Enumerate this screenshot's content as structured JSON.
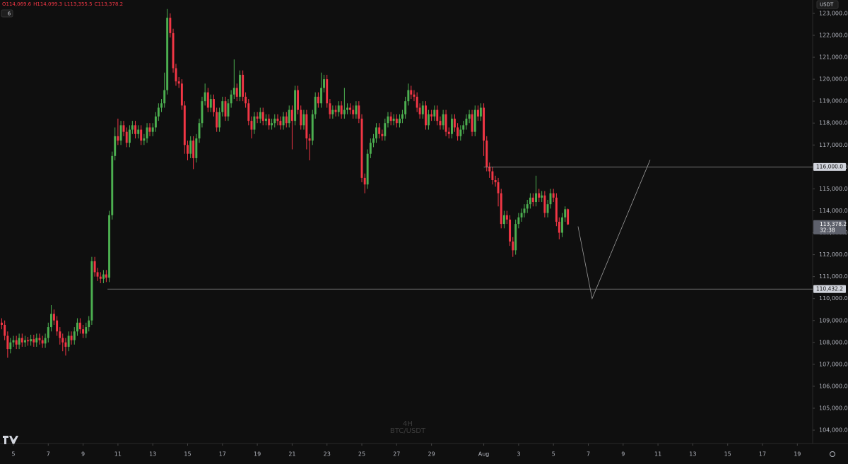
{
  "chart_data": {
    "type": "candlestick",
    "header_labels": [
      "O114,069.6",
      "H114,099.3",
      "L113,355.5",
      "C113,378.2"
    ],
    "interval_badge": "6",
    "currency": "USDT",
    "watermark": [
      "4H",
      "BTC/USDT"
    ],
    "up_color": "#4caf50",
    "down_color": "#f23645",
    "xlim": [
      4.23,
      50.88
    ],
    "ylim": [
      103390,
      123610
    ],
    "xticks": [
      5,
      7,
      9,
      11,
      13,
      15,
      17,
      19,
      21,
      23,
      25,
      27,
      29,
      {
        "value": 32,
        "label": "Aug"
      },
      {
        "value": 34,
        "label": "3"
      },
      {
        "value": 36,
        "label": "5"
      },
      {
        "value": 38,
        "label": "7"
      },
      {
        "value": 40,
        "label": "9"
      },
      {
        "value": 42,
        "label": "11"
      },
      {
        "value": 44,
        "label": "13"
      },
      {
        "value": 46,
        "label": "15"
      },
      {
        "value": 48,
        "label": "17"
      },
      {
        "value": 50,
        "label": "19"
      }
    ],
    "yticks": [
      {
        "value": 104000,
        "label": "104,000.0"
      },
      {
        "value": 105000,
        "label": "105,000.0"
      },
      {
        "value": 106000,
        "label": "106,000.0"
      },
      {
        "value": 107000,
        "label": "107,000.0"
      },
      {
        "value": 108000,
        "label": "108,000.0"
      },
      {
        "value": 109000,
        "label": "109,000.0"
      },
      {
        "value": 110000,
        "label": "110,000.0"
      },
      {
        "value": 111000,
        "label": "111,000.0"
      },
      {
        "value": 112000,
        "label": "112,000.0"
      },
      {
        "value": 113000,
        "label": "113,000.0"
      },
      {
        "value": 114000,
        "label": "114,000.0"
      },
      {
        "value": 115000,
        "label": "115,000.0"
      },
      {
        "value": 116000,
        "label": "116,000.0"
      },
      {
        "value": 117000,
        "label": "117,000.0"
      },
      {
        "value": 118000,
        "label": "118,000.0"
      },
      {
        "value": 119000,
        "label": "119,000.0"
      },
      {
        "value": 120000,
        "label": "120,000.0"
      },
      {
        "value": 121000,
        "label": "121,000.0"
      },
      {
        "value": 122000,
        "label": "122,000.0"
      },
      {
        "value": 123000,
        "label": "123,000.0"
      }
    ],
    "x": [
      4.33,
      4.5,
      4.67,
      4.83,
      5,
      5.17,
      5.33,
      5.5,
      5.67,
      5.83,
      6,
      6.17,
      6.33,
      6.5,
      6.67,
      6.83,
      7,
      7.17,
      7.33,
      7.5,
      7.67,
      7.83,
      8,
      8.17,
      8.33,
      8.5,
      8.67,
      8.83,
      9,
      9.17,
      9.33,
      9.5,
      9.67,
      9.83,
      10,
      10.17,
      10.33,
      10.5,
      10.67,
      10.83,
      11,
      11.17,
      11.33,
      11.5,
      11.67,
      11.83,
      12,
      12.17,
      12.33,
      12.5,
      12.67,
      12.83,
      13,
      13.17,
      13.33,
      13.5,
      13.67,
      13.83,
      14,
      14.17,
      14.33,
      14.5,
      14.67,
      14.83,
      15,
      15.17,
      15.33,
      15.5,
      15.67,
      15.83,
      16,
      16.17,
      16.33,
      16.5,
      16.67,
      16.83,
      17,
      17.17,
      17.33,
      17.5,
      17.67,
      17.83,
      18,
      18.17,
      18.33,
      18.5,
      18.67,
      18.83,
      19,
      19.17,
      19.33,
      19.5,
      19.67,
      19.83,
      20,
      20.17,
      20.33,
      20.5,
      20.67,
      20.83,
      21,
      21.17,
      21.33,
      21.5,
      21.67,
      21.83,
      22,
      22.17,
      22.33,
      22.5,
      22.67,
      22.83,
      23,
      23.17,
      23.33,
      23.5,
      23.67,
      23.83,
      24,
      24.17,
      24.33,
      24.5,
      24.67,
      24.83,
      25,
      25.17,
      25.33,
      25.5,
      25.67,
      25.83,
      26,
      26.17,
      26.33,
      26.5,
      26.67,
      26.83,
      27,
      27.17,
      27.33,
      27.5,
      27.67,
      27.83,
      28,
      28.17,
      28.33,
      28.5,
      28.67,
      28.83,
      29,
      29.17,
      29.33,
      29.5,
      29.67,
      29.83,
      30,
      30.17,
      30.33,
      30.5,
      30.67,
      30.83,
      31,
      31.17,
      31.33,
      31.5,
      31.67,
      31.83,
      32,
      32.17,
      32.33,
      32.5,
      32.67,
      32.83,
      33,
      33.17,
      33.33,
      33.5,
      33.67,
      33.83,
      34,
      34.17,
      34.33,
      34.5,
      34.67,
      34.83,
      35,
      35.17,
      35.33,
      35.5,
      35.67,
      35.83,
      36,
      36.17,
      36.33,
      36.5,
      36.67,
      36.83
    ],
    "open": [
      108900,
      108800,
      108300,
      107700,
      108000,
      108100,
      107900,
      108200,
      108000,
      108100,
      108050,
      108150,
      108000,
      108200,
      108100,
      107950,
      108200,
      108700,
      109300,
      109000,
      108500,
      108200,
      108000,
      107800,
      108300,
      108100,
      108500,
      108900,
      108600,
      108400,
      108700,
      109000,
      111700,
      111200,
      111000,
      110900,
      111100,
      110950,
      113800,
      116500,
      117400,
      117200,
      117900,
      117600,
      117100,
      117700,
      117900,
      117500,
      117700,
      117200,
      117300,
      117800,
      117600,
      117800,
      118300,
      118700,
      118900,
      119500,
      122800,
      122100,
      120500,
      119900,
      119800,
      118800,
      117000,
      116600,
      117200,
      116400,
      117300,
      118000,
      119000,
      119400,
      118700,
      119100,
      118500,
      117800,
      118500,
      119000,
      118300,
      118900,
      119300,
      119600,
      119200,
      120200,
      119200,
      118900,
      118100,
      117700,
      118300,
      118200,
      118500,
      118100,
      118200,
      117900,
      118000,
      118200,
      118100,
      117900,
      118300,
      118000,
      118600,
      118100,
      119500,
      118600,
      117900,
      118400,
      117300,
      117200,
      118400,
      119200,
      118900,
      119600,
      120000,
      118900,
      118400,
      118600,
      118500,
      118800,
      118400,
      118600,
      118700,
      118600,
      118400,
      118800,
      118200,
      115500,
      115200,
      116600,
      117100,
      117300,
      117800,
      117500,
      117400,
      118000,
      118300,
      118100,
      118200,
      118000,
      118200,
      118400,
      119000,
      119500,
      119300,
      119200,
      118700,
      118400,
      118800,
      117900,
      118400,
      118300,
      118600,
      118100,
      117900,
      118400,
      117600,
      117500,
      118200,
      117800,
      117400,
      117700,
      117900,
      118200,
      118400,
      117600,
      118600,
      118300,
      118700,
      117200,
      116000,
      115800,
      115400,
      115300,
      114800,
      113400,
      113800,
      113600,
      112600,
      112200,
      113400,
      113700,
      113900,
      114100,
      114300,
      114600,
      114400,
      114800,
      114600,
      114700,
      113900,
      114300,
      114800,
      114600,
      113500,
      113000,
      113700,
      114069.6
    ],
    "high": [
      109100,
      109000,
      108500,
      108200,
      108300,
      108300,
      108400,
      108400,
      108300,
      108250,
      108350,
      108350,
      108400,
      108400,
      108300,
      108400,
      108900,
      109700,
      109500,
      109200,
      108700,
      108400,
      108200,
      108500,
      108500,
      108700,
      109100,
      109100,
      108800,
      108900,
      109200,
      111900,
      111900,
      111400,
      111200,
      111300,
      111300,
      114000,
      116700,
      117800,
      118200,
      118100,
      118100,
      117800,
      117900,
      118100,
      118100,
      117900,
      117900,
      117500,
      118000,
      118000,
      118000,
      118500,
      118900,
      119100,
      120300,
      123200,
      123000,
      122300,
      120700,
      120100,
      120000,
      119000,
      117200,
      117400,
      117400,
      117500,
      118200,
      119200,
      119800,
      119600,
      119300,
      119300,
      118700,
      118700,
      119200,
      119200,
      119100,
      119500,
      120900,
      119800,
      120400,
      120400,
      119400,
      119100,
      118300,
      118500,
      118500,
      118700,
      118700,
      118400,
      118400,
      118200,
      118400,
      118400,
      118300,
      118500,
      118500,
      118800,
      118800,
      119700,
      119700,
      118800,
      118600,
      118600,
      117500,
      118600,
      119400,
      119400,
      120300,
      120200,
      120200,
      119100,
      118800,
      118800,
      119000,
      119000,
      119600,
      118900,
      118900,
      118800,
      119000,
      119000,
      118400,
      115700,
      116800,
      117300,
      117500,
      118000,
      118000,
      117700,
      118200,
      118500,
      118500,
      118400,
      118400,
      118400,
      118600,
      119200,
      119800,
      119700,
      119500,
      119400,
      118900,
      119000,
      119000,
      118600,
      118600,
      118800,
      118800,
      118300,
      118600,
      118600,
      117800,
      118400,
      118400,
      118000,
      117900,
      118100,
      118400,
      118600,
      118600,
      118800,
      118800,
      118900,
      118900,
      117400,
      116200,
      116000,
      115600,
      115500,
      115000,
      114000,
      114000,
      113800,
      112800,
      113600,
      113900,
      114100,
      114300,
      114500,
      114800,
      114800,
      115600,
      115000,
      114900,
      114900,
      114500,
      115000,
      115000,
      114800,
      113700,
      113900,
      114200,
      114099.3
    ],
    "low": [
      108600,
      108100,
      107300,
      107500,
      107800,
      107700,
      107700,
      107800,
      107800,
      107850,
      107850,
      107800,
      107800,
      107900,
      107750,
      107750,
      108000,
      108500,
      108800,
      108300,
      107900,
      107600,
      107400,
      107600,
      107900,
      107900,
      108300,
      108400,
      108200,
      108200,
      108500,
      108800,
      111000,
      110800,
      110700,
      110700,
      110750,
      110750,
      113600,
      116300,
      117000,
      117000,
      117400,
      116900,
      116900,
      117500,
      117300,
      117300,
      117000,
      117000,
      117100,
      117400,
      117400,
      117600,
      118100,
      118500,
      118700,
      119300,
      121900,
      120300,
      119700,
      119600,
      118600,
      116600,
      116300,
      116400,
      115900,
      116200,
      117100,
      117800,
      118800,
      118500,
      118500,
      118300,
      117600,
      117600,
      118300,
      118100,
      118100,
      118700,
      119100,
      119000,
      119000,
      119000,
      118700,
      117900,
      117300,
      117500,
      118000,
      118000,
      117900,
      117900,
      117700,
      117700,
      117800,
      117900,
      117700,
      117700,
      117800,
      117800,
      116800,
      117900,
      118400,
      117700,
      117700,
      116800,
      116300,
      117000,
      118200,
      118700,
      118700,
      119400,
      118700,
      118200,
      118200,
      118300,
      118300,
      118200,
      118200,
      118400,
      118400,
      118200,
      118200,
      118000,
      115300,
      114800,
      115000,
      116400,
      116900,
      117100,
      117300,
      117200,
      117200,
      117800,
      117900,
      117900,
      117800,
      117800,
      118000,
      118200,
      118800,
      119100,
      119000,
      118500,
      118200,
      118200,
      117700,
      117700,
      118100,
      118100,
      117900,
      117700,
      117700,
      117400,
      117300,
      117300,
      117600,
      117200,
      117200,
      117500,
      117700,
      118000,
      117400,
      117400,
      118100,
      118100,
      116500,
      115800,
      115500,
      115200,
      115100,
      114200,
      113200,
      113200,
      113400,
      112400,
      111900,
      112000,
      113200,
      113500,
      113700,
      113900,
      114100,
      114200,
      114200,
      114400,
      114400,
      113700,
      113700,
      114100,
      114400,
      113300,
      112700,
      112800,
      113500,
      113355.5
    ],
    "close": [
      108800,
      108300,
      107700,
      108000,
      108100,
      107900,
      108200,
      108000,
      108100,
      108050,
      108150,
      108000,
      108200,
      108100,
      107950,
      108200,
      108700,
      109300,
      109000,
      108500,
      108200,
      108000,
      107800,
      108300,
      108100,
      108500,
      108900,
      108600,
      108400,
      108700,
      109000,
      111700,
      111200,
      111000,
      110900,
      111100,
      110950,
      113800,
      116500,
      117400,
      117200,
      117900,
      117600,
      117100,
      117700,
      117900,
      117500,
      117700,
      117200,
      117300,
      117800,
      117600,
      117800,
      118300,
      118700,
      118900,
      119500,
      122800,
      122100,
      120500,
      119900,
      119800,
      118800,
      117000,
      116600,
      117200,
      116400,
      117300,
      118000,
      119000,
      119400,
      118700,
      119100,
      118500,
      117800,
      118500,
      119000,
      118300,
      118900,
      119300,
      119600,
      119200,
      120200,
      119200,
      118900,
      118100,
      117700,
      118300,
      118200,
      118500,
      118100,
      118200,
      117900,
      118000,
      118200,
      118100,
      117900,
      118300,
      118000,
      118600,
      118100,
      119500,
      118600,
      117900,
      118400,
      117300,
      117200,
      118400,
      119200,
      118900,
      119600,
      120000,
      118900,
      118400,
      118600,
      118500,
      118800,
      118400,
      118600,
      118700,
      118600,
      118400,
      118800,
      118200,
      115500,
      115200,
      116600,
      117100,
      117300,
      117800,
      117500,
      117400,
      118000,
      118300,
      118100,
      118200,
      118000,
      118200,
      118400,
      119000,
      119500,
      119300,
      119200,
      118700,
      118400,
      118800,
      117900,
      118400,
      118300,
      118600,
      118100,
      117900,
      118400,
      117600,
      117500,
      118200,
      117800,
      117400,
      117700,
      117900,
      118200,
      118400,
      117600,
      118600,
      118300,
      118700,
      117200,
      116000,
      115800,
      115400,
      115300,
      114800,
      113400,
      113800,
      113600,
      112600,
      112200,
      113400,
      113700,
      113900,
      114100,
      114300,
      114600,
      114400,
      114800,
      114600,
      114700,
      113900,
      114300,
      114800,
      114600,
      113500,
      113000,
      113700,
      114069.6,
      113378.2
    ],
    "last_price": {
      "label": "113,378.2",
      "countdown": "32:38"
    },
    "levels": [
      {
        "value": 116000,
        "label": "116,000.0",
        "x_from": 32
      },
      {
        "value": 110432.2,
        "label": "110,432.2",
        "x_from": 10.4
      }
    ],
    "projection": {
      "x": [
        37.41,
        38.22,
        41.55
      ],
      "y": [
        113290,
        110000,
        116320
      ]
    }
  }
}
